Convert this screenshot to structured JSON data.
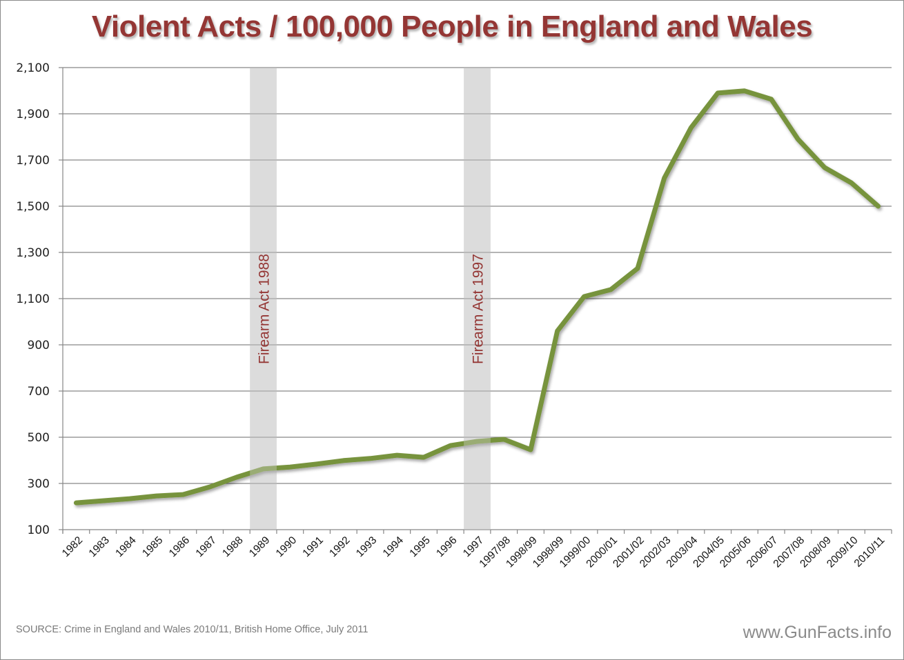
{
  "chart_data": {
    "type": "line",
    "title": "Violent Acts / 100,000 People in England and Wales",
    "xlabel": "",
    "ylabel": "",
    "ylim": [
      100,
      2100
    ],
    "yticks": [
      100,
      300,
      500,
      700,
      900,
      1100,
      1300,
      1500,
      1700,
      1900,
      2100
    ],
    "ytick_labels": [
      "100",
      "300",
      "500",
      "700",
      "900",
      "1,100",
      "1,300",
      "1,500",
      "1,700",
      "1,900",
      "2,100"
    ],
    "grid": true,
    "legend": "none",
    "categories": [
      "1982",
      "1983",
      "1984",
      "1985",
      "1986",
      "1987",
      "1988",
      "1989",
      "1990",
      "1991",
      "1992",
      "1993",
      "1994",
      "1995",
      "1996",
      "1997",
      "1997/98",
      "1998/99",
      "1998/99",
      "1999/00",
      "2000/01",
      "2001/02",
      "2002/03",
      "2003/04",
      "2004/05",
      "2005/06",
      "2006/07",
      "2007/08",
      "2008/09",
      "2009/10",
      "2010/11"
    ],
    "series": [
      {
        "name": "Violent Acts per 100,000",
        "color": "#77933C",
        "values": [
          216,
          225,
          234,
          246,
          252,
          285,
          327,
          363,
          371,
          384,
          399,
          408,
          422,
          413,
          464,
          482,
          491,
          446,
          960,
          1109,
          1139,
          1231,
          1622,
          1840,
          1990,
          1999,
          1963,
          1790,
          1667,
          1601,
          1500
        ]
      }
    ],
    "annotations": [
      {
        "label": "Firearm Act 1988",
        "category_index": 7,
        "color": "#943634",
        "band_color": "#DCDCDC"
      },
      {
        "label": "Firearm Act 1997",
        "category_index": 15,
        "color": "#943634",
        "band_color": "#DCDCDC"
      }
    ]
  },
  "footer": {
    "source": "SOURCE: Crime in England and Wales 2010/11, British Home Office, July 2011",
    "brand": "www.GunFacts.info"
  }
}
